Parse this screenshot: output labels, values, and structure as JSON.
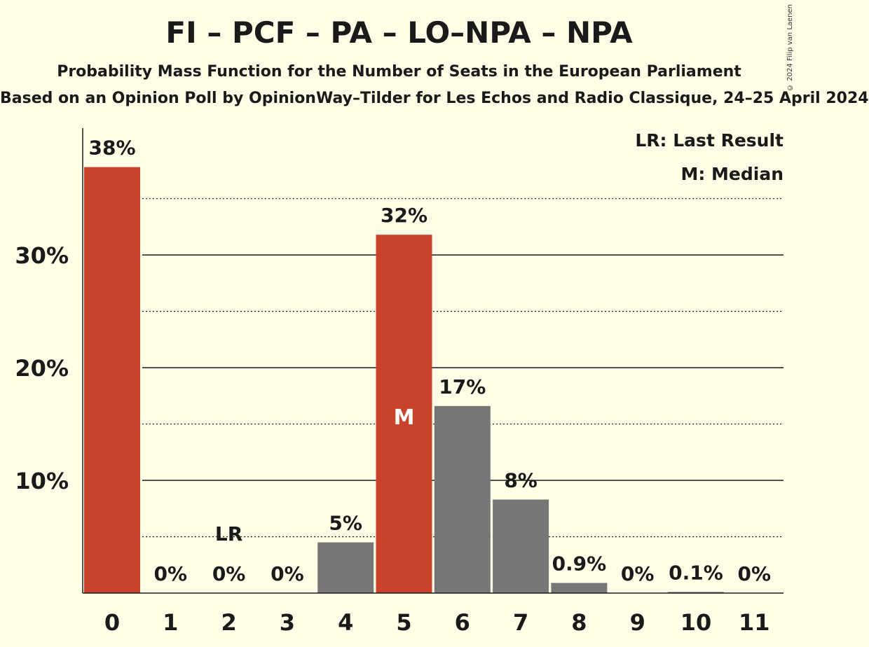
{
  "chart_data": {
    "type": "bar",
    "title": "FI – PCF – PA – LO–NPA – NPA",
    "subtitle": "Probability Mass Function for the Number of Seats in the European Parliament",
    "source": "Based on an Opinion Poll by OpinionWay–Tilder for Les Echos and Radio Classique, 24–25 April 2024",
    "copyright": "© 2024 Filip van Laenen",
    "categories": [
      "0",
      "1",
      "2",
      "3",
      "4",
      "5",
      "6",
      "7",
      "8",
      "9",
      "10",
      "11"
    ],
    "values": [
      37.8,
      0,
      0,
      0,
      4.5,
      31.8,
      16.6,
      8.3,
      0.9,
      0,
      0.1,
      0
    ],
    "labels": [
      "38%",
      "0%",
      "0%",
      "0%",
      "5%",
      "32%",
      "17%",
      "8%",
      "0.9%",
      "0%",
      "0.1%",
      "0%"
    ],
    "ylim": [
      0,
      41
    ],
    "yticks": [
      10,
      20,
      30
    ],
    "ytick_labels": [
      "10%",
      "20%",
      "30%"
    ],
    "minor_gridlines": [
      5,
      15,
      25,
      35
    ],
    "last_result_seat": 2,
    "last_result_marker": "LR",
    "median_seat": 5,
    "median_marker": "M",
    "legend": [
      "LR: Last Result",
      "M: Median"
    ],
    "legend_position": "top-right",
    "colors": {
      "highlight": "#C8432A",
      "default": "#777777",
      "background": "#FFFEE6"
    },
    "highlighted_seats": [
      0,
      5
    ]
  }
}
